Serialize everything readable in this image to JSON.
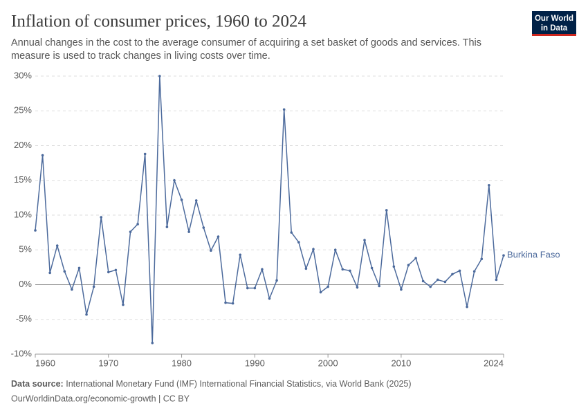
{
  "chart_data": {
    "type": "line",
    "title": "Inflation of consumer prices, 1960 to 2024",
    "subtitle": [
      "Annual changes in the cost to the average consumer of acquiring a set basket of goods and services. This",
      "measure is used to track changes in living costs over time."
    ],
    "logo": [
      "Our World",
      "in Data"
    ],
    "source_label": "Data source:",
    "source": "International Monetary Fund (IMF) International Financial Statistics, via World Bank (2025)",
    "footer": "OurWorldinData.org/economic-growth | CC BY",
    "x": [
      1960,
      1961,
      1962,
      1963,
      1964,
      1965,
      1966,
      1967,
      1968,
      1969,
      1970,
      1971,
      1972,
      1973,
      1974,
      1975,
      1976,
      1977,
      1978,
      1979,
      1980,
      1981,
      1982,
      1983,
      1984,
      1985,
      1986,
      1987,
      1988,
      1989,
      1990,
      1991,
      1992,
      1993,
      1994,
      1995,
      1996,
      1997,
      1998,
      1999,
      2000,
      2001,
      2002,
      2003,
      2004,
      2005,
      2006,
      2007,
      2008,
      2009,
      2010,
      2011,
      2012,
      2013,
      2014,
      2015,
      2016,
      2017,
      2018,
      2019,
      2020,
      2021,
      2022,
      2023,
      2024
    ],
    "series": [
      {
        "name": "Burkina Faso",
        "color": "#4c6a9c",
        "values": [
          7.8,
          18.6,
          1.7,
          5.6,
          1.9,
          -0.7,
          2.4,
          -4.3,
          -0.3,
          9.7,
          1.8,
          2.1,
          -2.9,
          7.6,
          8.7,
          18.8,
          -8.4,
          30.0,
          8.3,
          15.0,
          12.2,
          7.6,
          12.1,
          8.2,
          4.9,
          6.9,
          -2.6,
          -2.7,
          4.3,
          -0.5,
          -0.5,
          2.2,
          -2.0,
          0.6,
          25.2,
          7.5,
          6.1,
          2.3,
          5.1,
          -1.1,
          -0.3,
          5.0,
          2.2,
          2.0,
          -0.4,
          6.4,
          2.4,
          -0.2,
          10.7,
          2.6,
          -0.7,
          2.8,
          3.8,
          0.5,
          -0.3,
          0.7,
          0.4,
          1.5,
          2.0,
          -3.2,
          1.9,
          3.7,
          14.3,
          0.7,
          4.2
        ]
      }
    ],
    "xlim": [
      1960,
      2024
    ],
    "xticks": [
      1960,
      1970,
      1980,
      1990,
      2000,
      2010,
      2024
    ],
    "ylim": [
      -10,
      30
    ],
    "yticks": [
      {
        "value": -10,
        "label": "-10%"
      },
      {
        "value": -5,
        "label": "-5%"
      },
      {
        "value": 0,
        "label": "0%"
      },
      {
        "value": 5,
        "label": "5%"
      },
      {
        "value": 10,
        "label": "10%"
      },
      {
        "value": 15,
        "label": "15%"
      },
      {
        "value": 20,
        "label": "20%"
      },
      {
        "value": 25,
        "label": "25%"
      },
      {
        "value": 30,
        "label": "30%"
      }
    ],
    "grid": true
  }
}
